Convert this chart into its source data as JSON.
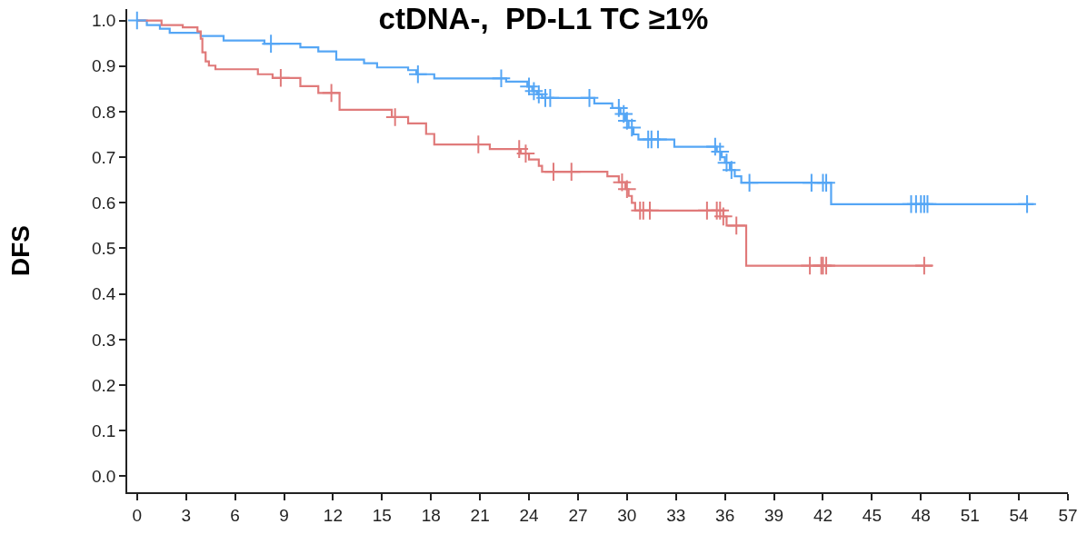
{
  "chart_data": {
    "type": "step",
    "title": "ctDNA-,  PD-L1 TC ≥1%",
    "ylabel": "DFS",
    "xlim": [
      -0.6,
      57
    ],
    "ylim": [
      -0.035,
      1.025
    ],
    "xticks": [
      0,
      3,
      6,
      9,
      12,
      15,
      18,
      21,
      24,
      27,
      30,
      33,
      36,
      39,
      42,
      45,
      48,
      51,
      54,
      57
    ],
    "yticks": [
      {
        "value": 0,
        "label": "0.0"
      },
      {
        "value": 0.1,
        "label": "0.1"
      },
      {
        "value": 0.2,
        "label": "0.2"
      },
      {
        "value": 0.3,
        "label": "0.3"
      },
      {
        "value": 0.4,
        "label": "0.4"
      },
      {
        "value": 0.5,
        "label": "0.5"
      },
      {
        "value": 0.6,
        "label": "0.6"
      },
      {
        "value": 0.7,
        "label": "0.7"
      },
      {
        "value": 0.8,
        "label": "0.8"
      },
      {
        "value": 0.9,
        "label": "0.9"
      },
      {
        "value": 1,
        "label": "1.0"
      }
    ],
    "grid": false,
    "series": [
      {
        "marker": "none",
        "color": "#55a6f5",
        "x": [
          0,
          0.6,
          1.4,
          2.0,
          3.9,
          5.3,
          7.8,
          10.0,
          11.1,
          12.2,
          13.9,
          14.7,
          16.6,
          17.1,
          18.2,
          22.6,
          23.9,
          24.2,
          24.5,
          24.8,
          28.0,
          29.1,
          29.6,
          29.9,
          30.1,
          30.4,
          30.7,
          32.9,
          35.5,
          35.8,
          36.0,
          36.3,
          36.6,
          37.0,
          42.5,
          54.9
        ],
        "values": [
          1.0,
          0.99,
          0.982,
          0.973,
          0.966,
          0.956,
          0.949,
          0.941,
          0.932,
          0.914,
          0.906,
          0.897,
          0.891,
          0.882,
          0.873,
          0.866,
          0.855,
          0.845,
          0.838,
          0.83,
          0.818,
          0.808,
          0.795,
          0.78,
          0.765,
          0.75,
          0.739,
          0.723,
          0.712,
          0.7,
          0.688,
          0.672,
          0.658,
          0.644,
          0.597,
          0.597
        ]
      },
      {
        "marker": "none",
        "color": "#e07a7a",
        "x": [
          0,
          1.5,
          2.8,
          3.7,
          3.9,
          4.0,
          4.2,
          4.4,
          4.8,
          7.4,
          8.3,
          10.0,
          11.1,
          12.4,
          15.6,
          16.6,
          17.7,
          18.2,
          21.6,
          23.5,
          24.0,
          24.6,
          24.8,
          28.8,
          29.5,
          29.9,
          30.1,
          30.3,
          30.5,
          35.9,
          36.1,
          37.3,
          48.7
        ],
        "values": [
          1.0,
          0.99,
          0.985,
          0.976,
          0.96,
          0.93,
          0.91,
          0.901,
          0.893,
          0.882,
          0.874,
          0.856,
          0.841,
          0.804,
          0.788,
          0.774,
          0.751,
          0.728,
          0.718,
          0.708,
          0.695,
          0.681,
          0.668,
          0.658,
          0.645,
          0.63,
          0.615,
          0.6,
          0.583,
          0.57,
          0.55,
          0.462,
          0.462
        ]
      },
      {
        "type": "scatter",
        "marker": "cross",
        "color": "#55a6f5",
        "x": [
          0,
          8.2,
          17.2,
          22.3,
          24.0,
          24.3,
          24.6,
          25.0,
          25.3,
          27.7,
          29.5,
          29.8,
          30.0,
          30.3,
          31.3,
          31.5,
          31.9,
          35.4,
          35.7,
          36.1,
          36.4,
          37.5,
          41.3,
          42.0,
          42.2,
          47.4,
          47.7,
          48.0,
          48.2,
          48.4,
          54.5
        ],
        "values": [
          1.0,
          0.949,
          0.882,
          0.873,
          0.855,
          0.845,
          0.838,
          0.83,
          0.83,
          0.83,
          0.808,
          0.795,
          0.78,
          0.765,
          0.739,
          0.739,
          0.739,
          0.723,
          0.712,
          0.688,
          0.672,
          0.644,
          0.644,
          0.644,
          0.644,
          0.597,
          0.597,
          0.597,
          0.597,
          0.597,
          0.597
        ]
      },
      {
        "type": "scatter",
        "marker": "cross",
        "color": "#e07a7a",
        "x": [
          8.8,
          11.9,
          15.8,
          20.9,
          23.4,
          23.8,
          25.5,
          26.6,
          29.7,
          30.0,
          30.8,
          31.0,
          31.4,
          34.9,
          35.5,
          35.7,
          35.9,
          36.7,
          41.2,
          41.9,
          42.0,
          42.2,
          48.2
        ],
        "values": [
          0.874,
          0.841,
          0.788,
          0.728,
          0.718,
          0.708,
          0.668,
          0.668,
          0.645,
          0.63,
          0.583,
          0.583,
          0.583,
          0.583,
          0.583,
          0.583,
          0.57,
          0.55,
          0.462,
          0.462,
          0.462,
          0.462,
          0.462
        ]
      }
    ]
  }
}
